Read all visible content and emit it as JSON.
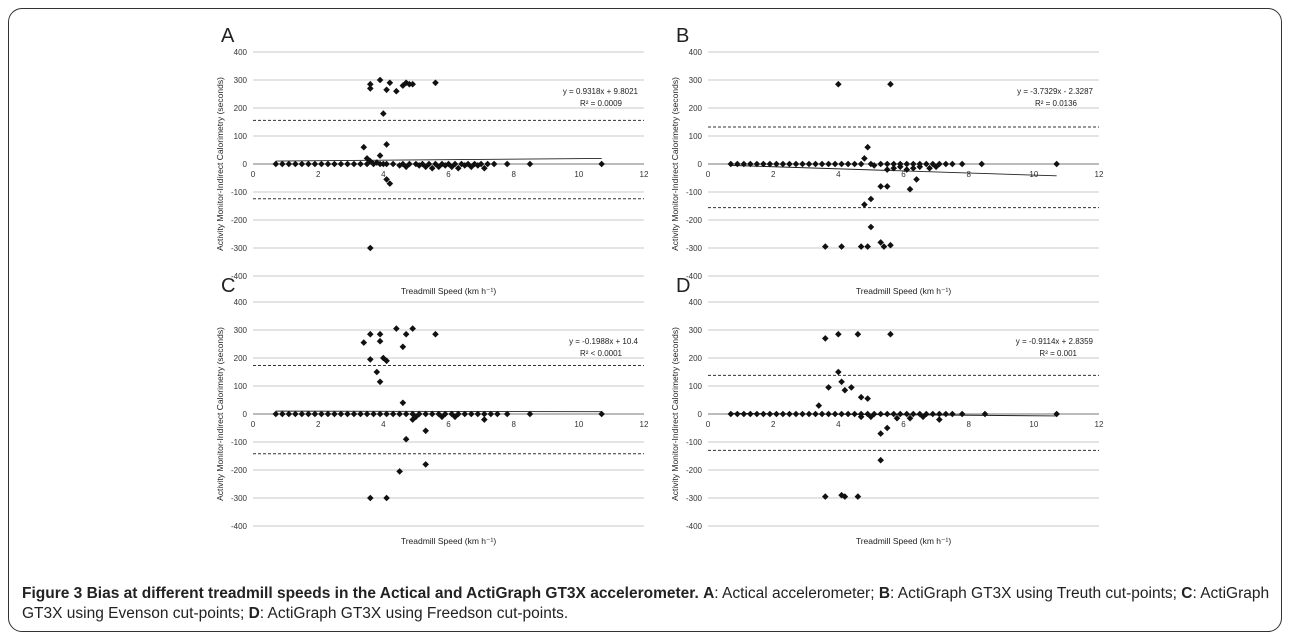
{
  "caption": {
    "figure_label": "Figure 3",
    "title": "Bias at different treadmill speeds in the Actical and ActiGraph GT3X accelerometer.",
    "parts": [
      {
        "key": "A",
        "text": ": Actical accelerometer; "
      },
      {
        "key": "B",
        "text": ": ActiGraph GT3X using Treuth cut-points; "
      },
      {
        "key": "C",
        "text": ": ActiGraph GT3X using Evenson cut-points; "
      },
      {
        "key": "D",
        "text": ": ActiGraph GT3X using Freedson cut-points."
      }
    ]
  },
  "chart_data": [
    {
      "panel": "A",
      "type": "scatter",
      "xlabel": "Treadmill Speed (km h⁻¹)",
      "ylabel": "Activity Monitor-Indirect Calorimetry (seconds)",
      "xlim": [
        0,
        12
      ],
      "ylim": [
        -400,
        400
      ],
      "xticks": [
        0,
        2,
        4,
        6,
        8,
        10,
        12
      ],
      "yticks": [
        -400,
        -300,
        -200,
        -100,
        0,
        100,
        200,
        300,
        400
      ],
      "grid": "horizontal",
      "equation": "y = 0.9318x + 9.8021",
      "r2": "R² = 0.0009",
      "trend": {
        "slope": 0.9318,
        "intercept": 9.8021,
        "x_range": [
          0.7,
          10.7
        ]
      },
      "limits": [
        156,
        -124
      ],
      "points": [
        [
          0.7,
          0
        ],
        [
          0.9,
          0
        ],
        [
          1.1,
          0
        ],
        [
          1.3,
          0
        ],
        [
          1.5,
          0
        ],
        [
          1.7,
          0
        ],
        [
          1.9,
          0
        ],
        [
          2.1,
          0
        ],
        [
          2.3,
          0
        ],
        [
          2.5,
          0
        ],
        [
          2.7,
          0
        ],
        [
          2.9,
          0
        ],
        [
          3.1,
          0
        ],
        [
          3.3,
          0
        ],
        [
          3.5,
          0
        ],
        [
          3.7,
          0
        ],
        [
          3.9,
          0
        ],
        [
          4.1,
          0
        ],
        [
          4.3,
          0
        ],
        [
          4.6,
          0
        ],
        [
          4.8,
          0
        ],
        [
          5.0,
          0
        ],
        [
          5.2,
          0
        ],
        [
          5.4,
          0
        ],
        [
          5.6,
          0
        ],
        [
          5.8,
          0
        ],
        [
          6.0,
          0
        ],
        [
          6.2,
          0
        ],
        [
          6.4,
          0
        ],
        [
          6.6,
          0
        ],
        [
          6.8,
          0
        ],
        [
          7.0,
          0
        ],
        [
          7.2,
          0
        ],
        [
          7.4,
          0
        ],
        [
          7.8,
          0
        ],
        [
          8.5,
          0
        ],
        [
          10.7,
          0
        ],
        [
          3.4,
          60
        ],
        [
          3.5,
          20
        ],
        [
          3.6,
          10
        ],
        [
          3.8,
          5
        ],
        [
          3.9,
          30
        ],
        [
          4.0,
          180
        ],
        [
          4.1,
          70
        ],
        [
          4.0,
          0
        ],
        [
          4.2,
          -70
        ],
        [
          4.1,
          -55
        ],
        [
          3.6,
          270
        ],
        [
          3.6,
          285
        ],
        [
          3.9,
          300
        ],
        [
          4.1,
          265
        ],
        [
          4.2,
          290
        ],
        [
          4.4,
          260
        ],
        [
          4.6,
          280
        ],
        [
          4.7,
          290
        ],
        [
          4.8,
          285
        ],
        [
          4.9,
          285
        ],
        [
          5.6,
          290
        ],
        [
          3.6,
          -300
        ],
        [
          4.5,
          -5
        ],
        [
          4.7,
          -10
        ],
        [
          5.1,
          -5
        ],
        [
          5.3,
          -10
        ],
        [
          5.5,
          -15
        ],
        [
          5.7,
          -10
        ],
        [
          5.9,
          -5
        ],
        [
          6.1,
          -10
        ],
        [
          6.3,
          -15
        ],
        [
          6.5,
          -5
        ],
        [
          6.7,
          -10
        ],
        [
          6.9,
          -5
        ],
        [
          7.1,
          -15
        ]
      ]
    },
    {
      "panel": "B",
      "type": "scatter",
      "xlabel": "Treadmill Speed (km h⁻¹)",
      "ylabel": "Activity Monitor-Indirect Calorimetry (seconds)",
      "xlim": [
        0,
        12
      ],
      "ylim": [
        -400,
        400
      ],
      "xticks": [
        0,
        2,
        4,
        6,
        8,
        10,
        12
      ],
      "yticks": [
        -400,
        -300,
        -200,
        -100,
        0,
        100,
        200,
        300,
        400
      ],
      "grid": "horizontal",
      "equation": "y = -3.7329x - 2.3287",
      "r2": "R² = 0.0136",
      "trend": {
        "slope": -3.7329,
        "intercept": -2.3287,
        "x_range": [
          0.7,
          10.7
        ]
      },
      "limits": [
        132,
        -156
      ],
      "points": [
        [
          0.7,
          0
        ],
        [
          0.9,
          0
        ],
        [
          1.1,
          0
        ],
        [
          1.3,
          0
        ],
        [
          1.5,
          0
        ],
        [
          1.7,
          0
        ],
        [
          1.9,
          0
        ],
        [
          2.1,
          0
        ],
        [
          2.3,
          0
        ],
        [
          2.5,
          0
        ],
        [
          2.7,
          0
        ],
        [
          2.9,
          0
        ],
        [
          3.1,
          0
        ],
        [
          3.3,
          0
        ],
        [
          3.5,
          0
        ],
        [
          3.7,
          0
        ],
        [
          3.9,
          0
        ],
        [
          4.1,
          0
        ],
        [
          4.3,
          0
        ],
        [
          4.5,
          0
        ],
        [
          4.7,
          0
        ],
        [
          5.0,
          0
        ],
        [
          5.3,
          0
        ],
        [
          5.5,
          0
        ],
        [
          5.7,
          0
        ],
        [
          5.9,
          0
        ],
        [
          6.1,
          0
        ],
        [
          6.3,
          0
        ],
        [
          6.5,
          0
        ],
        [
          6.7,
          0
        ],
        [
          6.9,
          0
        ],
        [
          7.1,
          0
        ],
        [
          7.3,
          0
        ],
        [
          7.5,
          0
        ],
        [
          7.8,
          0
        ],
        [
          8.4,
          0
        ],
        [
          10.7,
          0
        ],
        [
          4.0,
          285
        ],
        [
          5.6,
          285
        ],
        [
          4.9,
          60
        ],
        [
          4.8,
          20
        ],
        [
          5.1,
          -5
        ],
        [
          5.5,
          -20
        ],
        [
          5.7,
          -15
        ],
        [
          5.9,
          -10
        ],
        [
          6.1,
          -20
        ],
        [
          6.3,
          -15
        ],
        [
          6.5,
          -10
        ],
        [
          6.8,
          -15
        ],
        [
          7.0,
          -10
        ],
        [
          5.3,
          -80
        ],
        [
          5.5,
          -80
        ],
        [
          5.0,
          -125
        ],
        [
          4.8,
          -145
        ],
        [
          6.2,
          -90
        ],
        [
          6.4,
          -55
        ],
        [
          5.0,
          -225
        ],
        [
          3.6,
          -295
        ],
        [
          4.1,
          -295
        ],
        [
          4.7,
          -295
        ],
        [
          4.9,
          -295
        ],
        [
          5.3,
          -280
        ],
        [
          5.4,
          -295
        ],
        [
          5.6,
          -290
        ]
      ]
    },
    {
      "panel": "C",
      "type": "scatter",
      "xlabel": "Treadmill Speed (km h⁻¹)",
      "ylabel": "Activity Monitor-Indirect Calorimetry (seconds)",
      "xlim": [
        0,
        12
      ],
      "ylim": [
        -400,
        400
      ],
      "xticks": [
        0,
        2,
        4,
        6,
        8,
        10,
        12
      ],
      "yticks": [
        -400,
        -300,
        -200,
        -100,
        0,
        100,
        200,
        300,
        400
      ],
      "grid": "horizontal",
      "equation": "y = -0.1988x + 10.4",
      "r2": "R² < 0.0001",
      "trend": {
        "slope": -0.1988,
        "intercept": 10.4,
        "x_range": [
          0.7,
          10.7
        ]
      },
      "limits": [
        173,
        -142
      ],
      "points": [
        [
          0.7,
          0
        ],
        [
          0.9,
          0
        ],
        [
          1.1,
          0
        ],
        [
          1.3,
          0
        ],
        [
          1.5,
          0
        ],
        [
          1.7,
          0
        ],
        [
          1.9,
          0
        ],
        [
          2.1,
          0
        ],
        [
          2.3,
          0
        ],
        [
          2.5,
          0
        ],
        [
          2.7,
          0
        ],
        [
          2.9,
          0
        ],
        [
          3.1,
          0
        ],
        [
          3.3,
          0
        ],
        [
          3.5,
          0
        ],
        [
          3.7,
          0
        ],
        [
          3.9,
          0
        ],
        [
          4.1,
          0
        ],
        [
          4.3,
          0
        ],
        [
          4.5,
          0
        ],
        [
          4.7,
          0
        ],
        [
          4.9,
          0
        ],
        [
          5.1,
          0
        ],
        [
          5.3,
          0
        ],
        [
          5.5,
          0
        ],
        [
          5.7,
          0
        ],
        [
          5.9,
          0
        ],
        [
          6.1,
          0
        ],
        [
          6.3,
          0
        ],
        [
          6.5,
          0
        ],
        [
          6.7,
          0
        ],
        [
          6.9,
          0
        ],
        [
          7.1,
          0
        ],
        [
          7.3,
          0
        ],
        [
          7.5,
          0
        ],
        [
          7.8,
          0
        ],
        [
          8.5,
          0
        ],
        [
          10.7,
          0
        ],
        [
          3.4,
          255
        ],
        [
          3.6,
          285
        ],
        [
          3.6,
          195
        ],
        [
          3.8,
          150
        ],
        [
          3.9,
          115
        ],
        [
          4.0,
          200
        ],
        [
          4.1,
          190
        ],
        [
          3.9,
          260
        ],
        [
          3.9,
          285
        ],
        [
          4.4,
          305
        ],
        [
          4.6,
          240
        ],
        [
          4.7,
          285
        ],
        [
          4.9,
          305
        ],
        [
          5.6,
          285
        ],
        [
          4.6,
          40
        ],
        [
          4.7,
          -90
        ],
        [
          4.9,
          -20
        ],
        [
          5.0,
          -10
        ],
        [
          5.3,
          -60
        ],
        [
          5.8,
          -10
        ],
        [
          6.2,
          -10
        ],
        [
          7.1,
          -20
        ],
        [
          4.5,
          -205
        ],
        [
          5.3,
          -180
        ],
        [
          3.6,
          -300
        ],
        [
          4.1,
          -300
        ]
      ]
    },
    {
      "panel": "D",
      "type": "scatter",
      "xlabel": "Treadmill Speed (km h⁻¹)",
      "ylabel": "Activity Monitor-Indirect Calorimetry (seconds)",
      "xlim": [
        0,
        12
      ],
      "ylim": [
        -400,
        400
      ],
      "xticks": [
        0,
        2,
        4,
        6,
        8,
        10,
        12
      ],
      "yticks": [
        -400,
        -300,
        -200,
        -100,
        0,
        100,
        200,
        300,
        400
      ],
      "grid": "horizontal",
      "equation": "y = -0.9114x + 2.8359",
      "r2": "R² = 0.001",
      "trend": {
        "slope": -0.9114,
        "intercept": 2.8359,
        "x_range": [
          0.7,
          10.7
        ]
      },
      "limits": [
        138,
        -130
      ],
      "points": [
        [
          0.7,
          0
        ],
        [
          0.9,
          0
        ],
        [
          1.1,
          0
        ],
        [
          1.3,
          0
        ],
        [
          1.5,
          0
        ],
        [
          1.7,
          0
        ],
        [
          1.9,
          0
        ],
        [
          2.1,
          0
        ],
        [
          2.3,
          0
        ],
        [
          2.5,
          0
        ],
        [
          2.7,
          0
        ],
        [
          2.9,
          0
        ],
        [
          3.1,
          0
        ],
        [
          3.3,
          0
        ],
        [
          3.5,
          0
        ],
        [
          3.7,
          0
        ],
        [
          3.9,
          0
        ],
        [
          4.1,
          0
        ],
        [
          4.3,
          0
        ],
        [
          4.5,
          0
        ],
        [
          4.7,
          0
        ],
        [
          4.9,
          0
        ],
        [
          5.1,
          0
        ],
        [
          5.3,
          0
        ],
        [
          5.5,
          0
        ],
        [
          5.7,
          0
        ],
        [
          5.9,
          0
        ],
        [
          6.1,
          0
        ],
        [
          6.3,
          0
        ],
        [
          6.5,
          0
        ],
        [
          6.7,
          0
        ],
        [
          6.9,
          0
        ],
        [
          7.1,
          0
        ],
        [
          7.3,
          0
        ],
        [
          7.5,
          0
        ],
        [
          7.8,
          0
        ],
        [
          8.5,
          0
        ],
        [
          10.7,
          0
        ],
        [
          3.6,
          270
        ],
        [
          4.0,
          285
        ],
        [
          4.6,
          285
        ],
        [
          5.6,
          285
        ],
        [
          3.4,
          30
        ],
        [
          3.7,
          95
        ],
        [
          4.0,
          150
        ],
        [
          4.1,
          115
        ],
        [
          4.2,
          85
        ],
        [
          4.4,
          95
        ],
        [
          4.7,
          60
        ],
        [
          4.9,
          55
        ],
        [
          4.7,
          -10
        ],
        [
          5.0,
          -10
        ],
        [
          5.3,
          -70
        ],
        [
          5.5,
          -50
        ],
        [
          5.8,
          -15
        ],
        [
          6.2,
          -15
        ],
        [
          6.6,
          -10
        ],
        [
          7.1,
          -20
        ],
        [
          5.3,
          -165
        ],
        [
          3.6,
          -295
        ],
        [
          4.1,
          -290
        ],
        [
          4.2,
          -295
        ],
        [
          4.6,
          -295
        ]
      ]
    }
  ]
}
